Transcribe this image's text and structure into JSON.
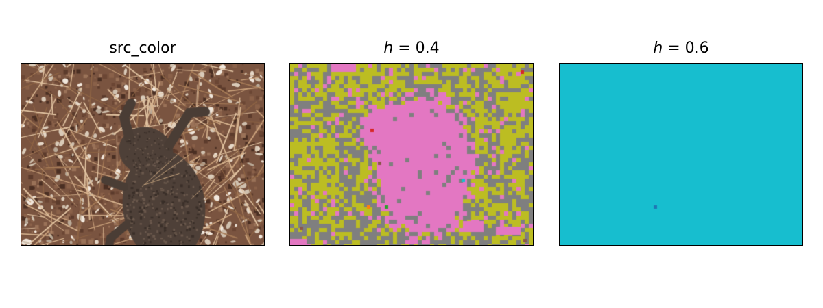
{
  "panels": [
    {
      "title": "src_color",
      "content": "photo of a dried, flattened toad lying on a forest floor covered with pine needles and small pebbles"
    },
    {
      "title_var": "h",
      "title_rest": " = 0.4",
      "content": "segmentation map",
      "palette": {
        "gray": "#7f7f7f",
        "olive": "#bcbd22",
        "pink": "#e377c2",
        "red": "#d62728",
        "brown": "#8c564b",
        "cyan": "#17becf",
        "orange": "#ff7f0e",
        "green": "#2ca02c"
      }
    },
    {
      "title_var": "h",
      "title_rest": " = 0.6",
      "content": "segmentation map",
      "palette": {
        "background": "#17becf",
        "dot": "#1f77b4"
      }
    }
  ]
}
